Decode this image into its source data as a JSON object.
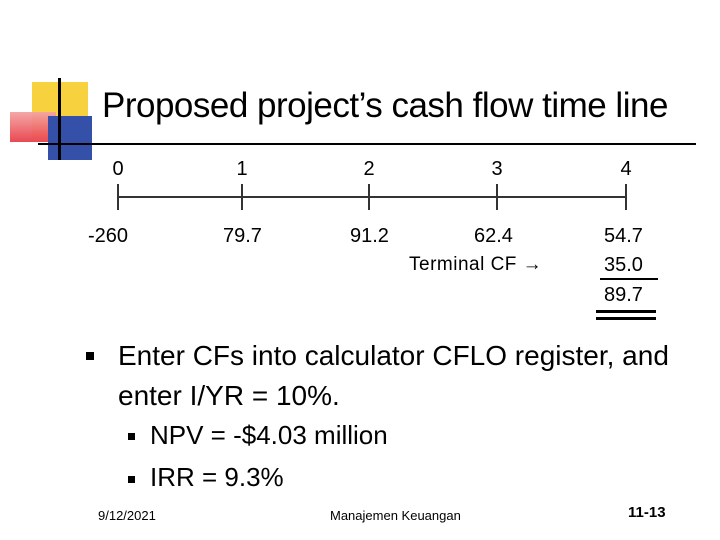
{
  "title": "Proposed project’s cash flow time line",
  "timeline": {
    "periods": [
      "0",
      "1",
      "2",
      "3",
      "4"
    ],
    "cash_flows": [
      "-260",
      "79.7",
      "91.2",
      "62.4",
      "54.7"
    ],
    "terminal_label": "Terminal CF →",
    "terminal_value": "35.0",
    "total_value": "89.7"
  },
  "bullets": {
    "main": "Enter CFs into calculator CFLO register, and enter I/YR = 10%.",
    "sub": [
      "NPV = -$4.03 million",
      "IRR = 9.3%"
    ]
  },
  "footer": {
    "date": "9/12/2021",
    "center": "Manajemen Keuangan",
    "slide_number": "11-13"
  }
}
